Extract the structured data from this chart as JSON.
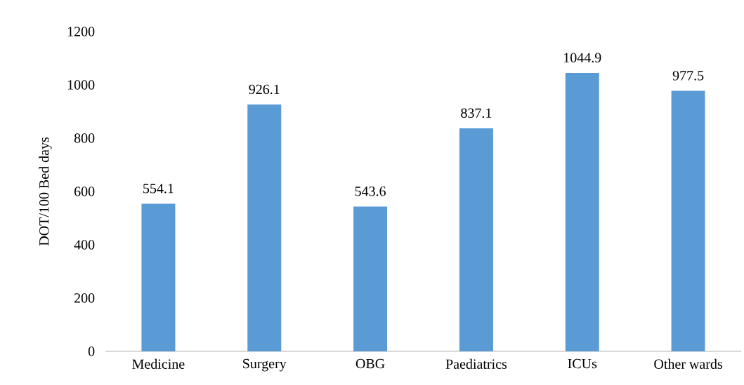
{
  "chart_data": {
    "type": "bar",
    "ylabel": "DOT/100 Bed days",
    "categories": [
      "Medicine",
      "Surgery",
      "OBG",
      "Paediatrics",
      "ICUs",
      "Other wards"
    ],
    "values": [
      554.1,
      926.1,
      543.6,
      837.1,
      1044.9,
      977.5
    ],
    "color": "#5b9bd5",
    "ylim": [
      0,
      1200
    ],
    "yticks": [
      0,
      200,
      400,
      600,
      800,
      1000,
      1200
    ],
    "data_labels": true
  }
}
